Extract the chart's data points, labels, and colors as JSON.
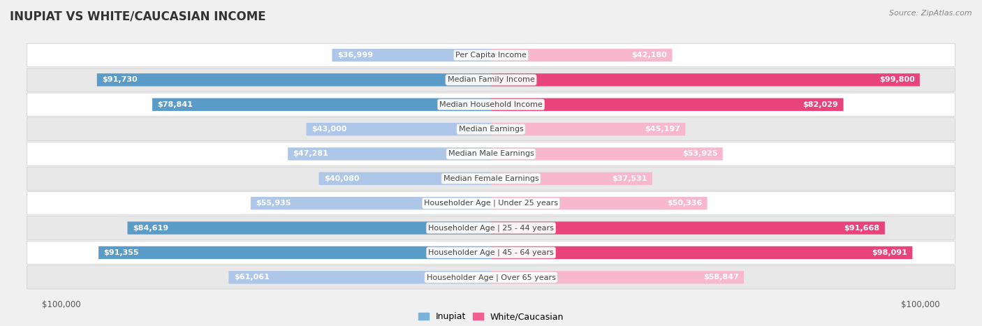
{
  "title": "INUPIAT VS WHITE/CAUCASIAN INCOME",
  "source": "Source: ZipAtlas.com",
  "categories": [
    "Per Capita Income",
    "Median Family Income",
    "Median Household Income",
    "Median Earnings",
    "Median Male Earnings",
    "Median Female Earnings",
    "Householder Age | Under 25 years",
    "Householder Age | 25 - 44 years",
    "Householder Age | 45 - 64 years",
    "Householder Age | Over 65 years"
  ],
  "inupiat_values": [
    36999,
    91730,
    78841,
    43000,
    47281,
    40080,
    55935,
    84619,
    91355,
    61061
  ],
  "white_values": [
    42180,
    99800,
    82029,
    45197,
    53925,
    37531,
    50336,
    91668,
    98091,
    58847
  ],
  "inupiat_color_light": "#aec6e8",
  "inupiat_color_dark": "#5b9bc8",
  "white_color_light": "#f7b8ce",
  "white_color_dark": "#e8437a",
  "max_value": 100000,
  "background_color": "#f0f0f0",
  "row_bg_light": "#ffffff",
  "row_bg_dark": "#e8e8e8",
  "title_color": "#333333",
  "label_text_color": "#555555",
  "white_text": "#ffffff",
  "category_text_color": "#444444",
  "legend_inupiat_color": "#7ab3d8",
  "legend_white_color": "#f06090"
}
